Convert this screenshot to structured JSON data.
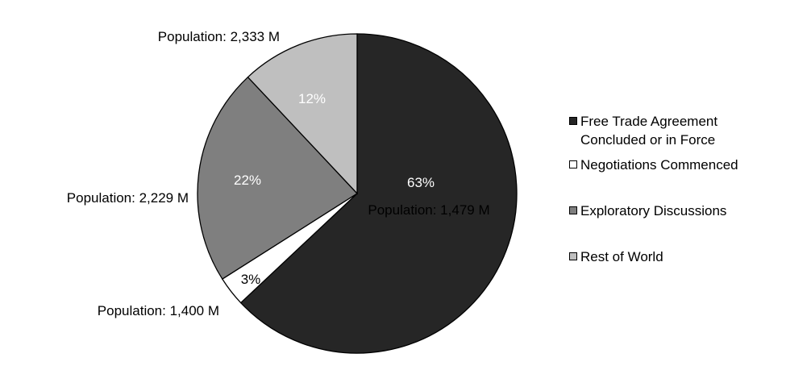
{
  "chart_data": {
    "type": "pie",
    "slices": [
      {
        "name": "Free Trade Agreement\nConcluded or in Force",
        "percent": 63,
        "label": "63%",
        "population_label": "Population: 1,479 M",
        "color": "#262626",
        "text_color": "#ffffff"
      },
      {
        "name": "Negotiations Commenced",
        "percent": 3,
        "label": "3%",
        "population_label": "Population: 1,400 M",
        "color": "#ffffff",
        "text_color": "#000000"
      },
      {
        "name": "Exploratory Discussions",
        "percent": 22,
        "label": "22%",
        "population_label": "Population: 2,229 M",
        "color": "#7f7f7f",
        "text_color": "#ffffff"
      },
      {
        "name": "Rest of World",
        "percent": 12,
        "label": "12%",
        "population_label": "Population: 2,333 M",
        "color": "#bfbfbf",
        "text_color": "#ffffff"
      }
    ],
    "start_angle": "12 o'clock",
    "direction": "clockwise",
    "legend_position": "right"
  }
}
